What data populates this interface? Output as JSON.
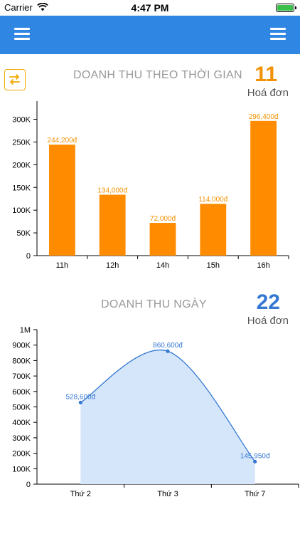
{
  "status_bar": {
    "carrier": "Carrier",
    "time": "4:47 PM"
  },
  "nav": {
    "left_icon": "menu-icon",
    "right_icon": "menu-icon"
  },
  "colors": {
    "nav": "#2f86e3",
    "orange": "#ff8c00",
    "orange_label": "#f29100",
    "blue": "#3478d4",
    "area_fill": "#d6e6fa"
  },
  "revenue_by_time": {
    "title": "DOANH THU THEO THỜI GIAN",
    "count": "11",
    "count_label": "Hoá đơn",
    "swap_icon": "swap-arrows-icon"
  },
  "revenue_by_day": {
    "title": "DOANH THU NGÀY",
    "count": "22",
    "count_label": "Hoá đơn"
  },
  "chart_data": [
    {
      "type": "bar",
      "categories": [
        "11h",
        "12h",
        "14h",
        "15h",
        "16h"
      ],
      "values": [
        244200,
        134000,
        72000,
        114000,
        296400
      ],
      "labels": [
        "244,200đ",
        "134,000đ",
        "72,000đ",
        "114,000đ",
        "296,400đ"
      ],
      "yticks": [
        "0",
        "50K",
        "100K",
        "150K",
        "200K",
        "250K",
        "300K"
      ],
      "ylim": [
        0,
        340000
      ],
      "grid": false
    },
    {
      "type": "area",
      "categories": [
        "Thứ 2",
        "Thứ 3",
        "Thứ 7"
      ],
      "values": [
        528600,
        860600,
        145950
      ],
      "labels": [
        "528,600đ",
        "860,600đ",
        "145,950đ"
      ],
      "yticks": [
        "0",
        "100K",
        "200K",
        "300K",
        "400K",
        "500K",
        "600K",
        "700K",
        "800K",
        "900K",
        "1M"
      ],
      "ylim": [
        0,
        1000000
      ],
      "grid": false
    }
  ]
}
